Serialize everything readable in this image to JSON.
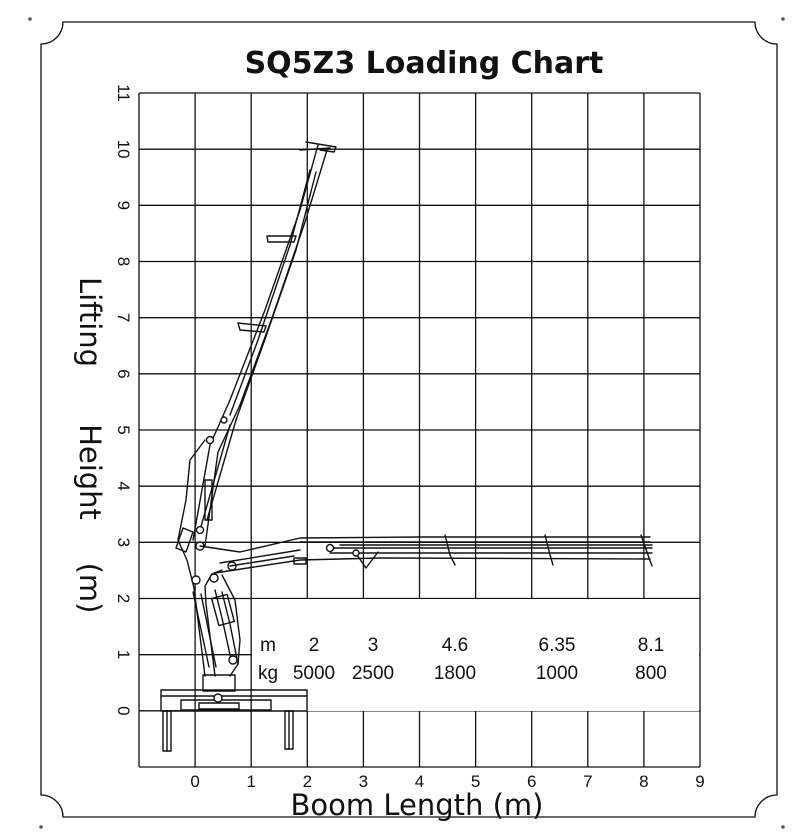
{
  "chart_data": {
    "type": "table",
    "title": "SQ5Z3  Loading Chart",
    "xlabel": "Boom Length (m)",
    "ylabel": [
      "Lifting",
      "Height",
      "(m)"
    ],
    "xlim": [
      -1,
      9
    ],
    "ylim": [
      -1,
      11
    ],
    "x_ticks": [
      "0",
      "1",
      "2",
      "3",
      "4",
      "5",
      "6",
      "7",
      "8",
      "9"
    ],
    "y_ticks": [
      "0",
      "1",
      "2",
      "3",
      "4",
      "5",
      "6",
      "7",
      "8",
      "9",
      "10",
      "11"
    ],
    "grid": true,
    "load_table": {
      "row_labels": [
        "m",
        "kg"
      ],
      "columns": [
        {
          "m": "2",
          "kg": "5000"
        },
        {
          "m": "3",
          "kg": "2500"
        },
        {
          "m": "4.6",
          "kg": "1800"
        },
        {
          "m": "6.35",
          "kg": "1000"
        },
        {
          "m": "8.1",
          "kg": "800"
        }
      ]
    }
  }
}
